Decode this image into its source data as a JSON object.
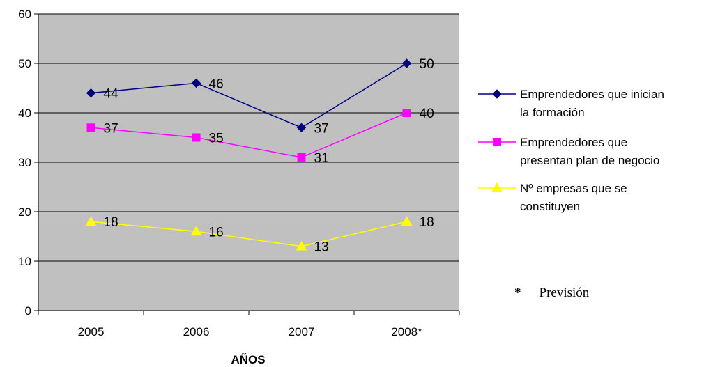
{
  "chart_data": {
    "type": "line",
    "categories": [
      "2005",
      "2006",
      "2007",
      "2008*"
    ],
    "xlabel": "AÑOS",
    "ylabel": "",
    "ylim": [
      0,
      60
    ],
    "yticks": [
      0,
      10,
      20,
      30,
      40,
      50,
      60
    ],
    "grid": true,
    "plot_background": "#c0c0c0",
    "legend_position": "right",
    "series": [
      {
        "name_lines": [
          "Emprendedores que inician",
          "la formación"
        ],
        "values": [
          44,
          46,
          37,
          50
        ],
        "color": "#000080",
        "marker": "diamond"
      },
      {
        "name_lines": [
          "Emprendedores que",
          "presentan plan de negocio"
        ],
        "values": [
          37,
          35,
          31,
          40
        ],
        "color": "#ff00ff",
        "marker": "square"
      },
      {
        "name_lines": [
          "Nº empresas que se",
          "constituyen"
        ],
        "values": [
          18,
          16,
          13,
          18
        ],
        "color": "#ffff00",
        "marker": "triangle"
      }
    ]
  },
  "note": {
    "symbol": "*",
    "text": "Previsión"
  }
}
